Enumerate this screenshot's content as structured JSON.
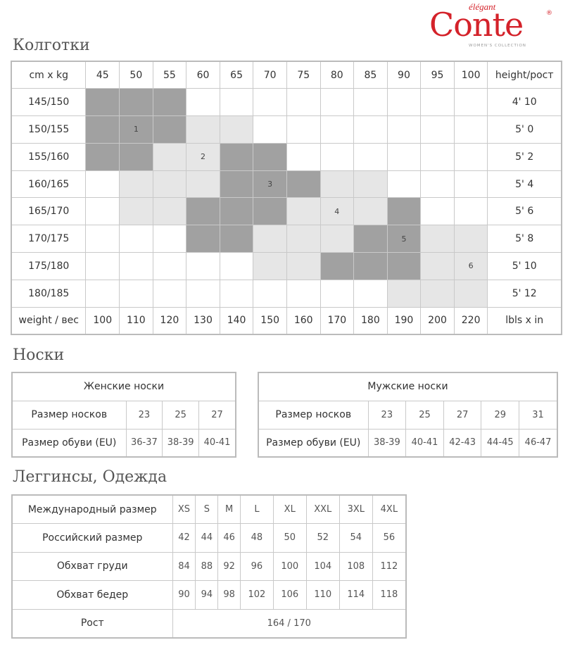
{
  "logo": {
    "elegant": "élégant",
    "brand": "Conte",
    "reg": "®",
    "subtitle": "WOMEN'S COLLECTION"
  },
  "tights": {
    "title": "Колготки",
    "corner_label": "cm x kg",
    "right_header": "height/рост",
    "weights_kg": [
      "45",
      "50",
      "55",
      "60",
      "65",
      "70",
      "75",
      "80",
      "85",
      "90",
      "95",
      "100"
    ],
    "rows": [
      {
        "height_cm": "145/150",
        "height_ft": "4' 10"
      },
      {
        "height_cm": "150/155",
        "height_ft": "5' 0"
      },
      {
        "height_cm": "155/160",
        "height_ft": "5' 2"
      },
      {
        "height_cm": "160/165",
        "height_ft": "5' 4"
      },
      {
        "height_cm": "165/170",
        "height_ft": "5' 6"
      },
      {
        "height_cm": "170/175",
        "height_ft": "5' 8"
      },
      {
        "height_cm": "175/180",
        "height_ft": "5' 10"
      },
      {
        "height_cm": "180/185",
        "height_ft": "5' 12"
      }
    ],
    "grid": [
      [
        "d",
        "d",
        "d",
        "",
        "",
        "",
        "",
        "",
        "",
        "",
        "",
        ""
      ],
      [
        "d",
        "d",
        "d",
        "l",
        "l",
        "",
        "",
        "",
        "",
        "",
        "",
        ""
      ],
      [
        "d",
        "d",
        "l",
        "l",
        "d",
        "d",
        "",
        "",
        "",
        "",
        "",
        ""
      ],
      [
        "",
        "l",
        "l",
        "l",
        "d",
        "d",
        "d",
        "l",
        "l",
        "",
        "",
        ""
      ],
      [
        "",
        "l",
        "l",
        "d",
        "d",
        "d",
        "l",
        "l",
        "l",
        "d",
        "",
        ""
      ],
      [
        "",
        "",
        "",
        "d",
        "d",
        "l",
        "l",
        "l",
        "d",
        "d",
        "l",
        "l"
      ],
      [
        "",
        "",
        "",
        "",
        "",
        "l",
        "l",
        "d",
        "d",
        "d",
        "l",
        "l"
      ],
      [
        "",
        "",
        "",
        "",
        "",
        "",
        "",
        "",
        "",
        "l",
        "l",
        "l"
      ]
    ],
    "size_labels": [
      {
        "row": 1,
        "col": 1,
        "text": "1"
      },
      {
        "row": 2,
        "col": 3,
        "text": "2"
      },
      {
        "row": 3,
        "col": 5,
        "text": "3"
      },
      {
        "row": 4,
        "col": 7,
        "text": "4"
      },
      {
        "row": 5,
        "col": 9,
        "text": "5"
      },
      {
        "row": 6,
        "col": 11,
        "text": "6"
      }
    ],
    "footer_label": "weight / вес",
    "weights_lbs": [
      "100",
      "110",
      "120",
      "130",
      "140",
      "150",
      "160",
      "170",
      "180",
      "190",
      "200",
      "220"
    ],
    "footer_right": "lbls x in"
  },
  "socks": {
    "title": "Носки",
    "women": {
      "header": "Женские носки",
      "size_label": "Размер носков",
      "sizes": [
        "23",
        "25",
        "27"
      ],
      "shoe_label": "Размер обуви (EU)",
      "shoe_sizes": [
        "36-37",
        "38-39",
        "40-41"
      ]
    },
    "men": {
      "header": "Мужские носки",
      "size_label": "Размер носков",
      "sizes": [
        "23",
        "25",
        "27",
        "29",
        "31"
      ],
      "shoe_label": "Размер обуви (EU)",
      "shoe_sizes": [
        "38-39",
        "40-41",
        "42-43",
        "44-45",
        "46-47"
      ]
    }
  },
  "leggings": {
    "title": "Леггинсы, Одежда",
    "rows": [
      {
        "label": "Международный размер",
        "values": [
          "XS",
          "S",
          "M",
          "L",
          "XL",
          "XXL",
          "3XL",
          "4XL"
        ]
      },
      {
        "label": "Российский размер",
        "values": [
          "42",
          "44",
          "46",
          "48",
          "50",
          "52",
          "54",
          "56"
        ]
      },
      {
        "label": "Обхват груди",
        "values": [
          "84",
          "88",
          "92",
          "96",
          "100",
          "104",
          "108",
          "112"
        ]
      },
      {
        "label": "Обхват бедер",
        "values": [
          "90",
          "94",
          "98",
          "102",
          "106",
          "110",
          "114",
          "118"
        ]
      }
    ],
    "height_label": "Рост",
    "height_value": "164 / 170"
  }
}
